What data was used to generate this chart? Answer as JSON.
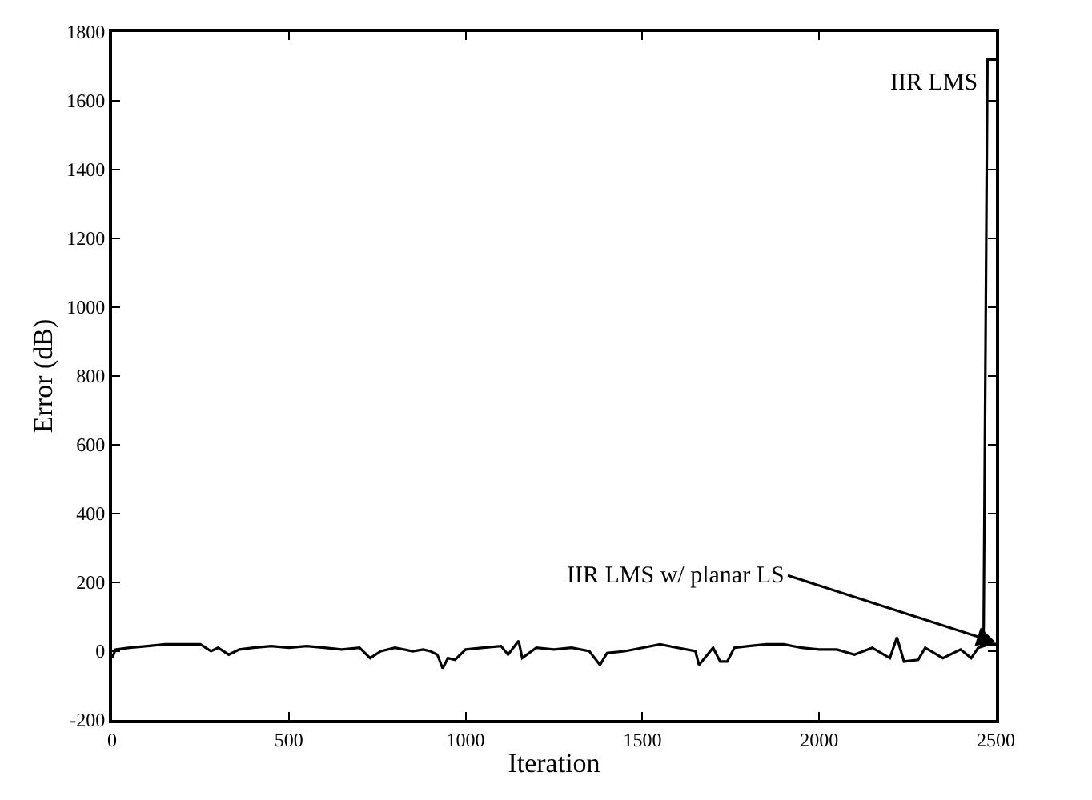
{
  "chart_data": {
    "type": "line",
    "xlabel": "Iteration",
    "ylabel": "Error (dB)",
    "xlim": [
      0,
      2500
    ],
    "xticks": [
      0,
      500,
      1000,
      1500,
      2000,
      2500
    ],
    "ylim": [
      -200,
      1800
    ],
    "yticks": [
      -200,
      0,
      200,
      400,
      600,
      800,
      1000,
      1200,
      1400,
      1600,
      1800
    ],
    "marker": "none",
    "line_style": "solid",
    "series": [
      {
        "color": "#000000",
        "x": [
          0,
          10,
          50,
          100,
          150,
          200,
          250,
          280,
          300,
          330,
          360,
          400,
          450,
          500,
          550,
          600,
          650,
          700,
          730,
          760,
          800,
          850,
          880,
          900,
          920,
          935,
          950,
          970,
          1000,
          1050,
          1100,
          1120,
          1150,
          1160,
          1200,
          1250,
          1300,
          1350,
          1380,
          1400,
          1450,
          1500,
          1550,
          1600,
          1650,
          1660,
          1700,
          1720,
          1740,
          1760,
          1800,
          1850,
          1900,
          1950,
          2000,
          2050,
          2100,
          2150,
          2200,
          2220,
          2240,
          2280,
          2300,
          2350,
          2400,
          2430,
          2450,
          2480,
          2500
        ],
        "values": [
          -20,
          5,
          10,
          15,
          20,
          20,
          20,
          0,
          10,
          -10,
          5,
          10,
          15,
          10,
          15,
          10,
          5,
          10,
          -20,
          0,
          10,
          0,
          5,
          0,
          -10,
          -50,
          -20,
          -25,
          5,
          10,
          15,
          -10,
          30,
          -20,
          10,
          5,
          10,
          0,
          -40,
          -5,
          0,
          10,
          20,
          10,
          0,
          -40,
          10,
          -30,
          -30,
          10,
          15,
          20,
          20,
          10,
          5,
          5,
          -10,
          10,
          -20,
          40,
          -30,
          -25,
          10,
          -20,
          5,
          -20,
          10,
          20,
          20
        ]
      },
      {
        "color": "#000000",
        "x": [
          2450,
          2465,
          2476,
          2500
        ],
        "values": [
          10,
          20,
          1720,
          1720
        ]
      }
    ],
    "annotations": [
      {
        "text": "IIR LMS",
        "x": 2476,
        "y": 1650
      },
      {
        "text": "IIR LMS w/ planar LS",
        "x": 2500,
        "y": 25
      }
    ]
  }
}
